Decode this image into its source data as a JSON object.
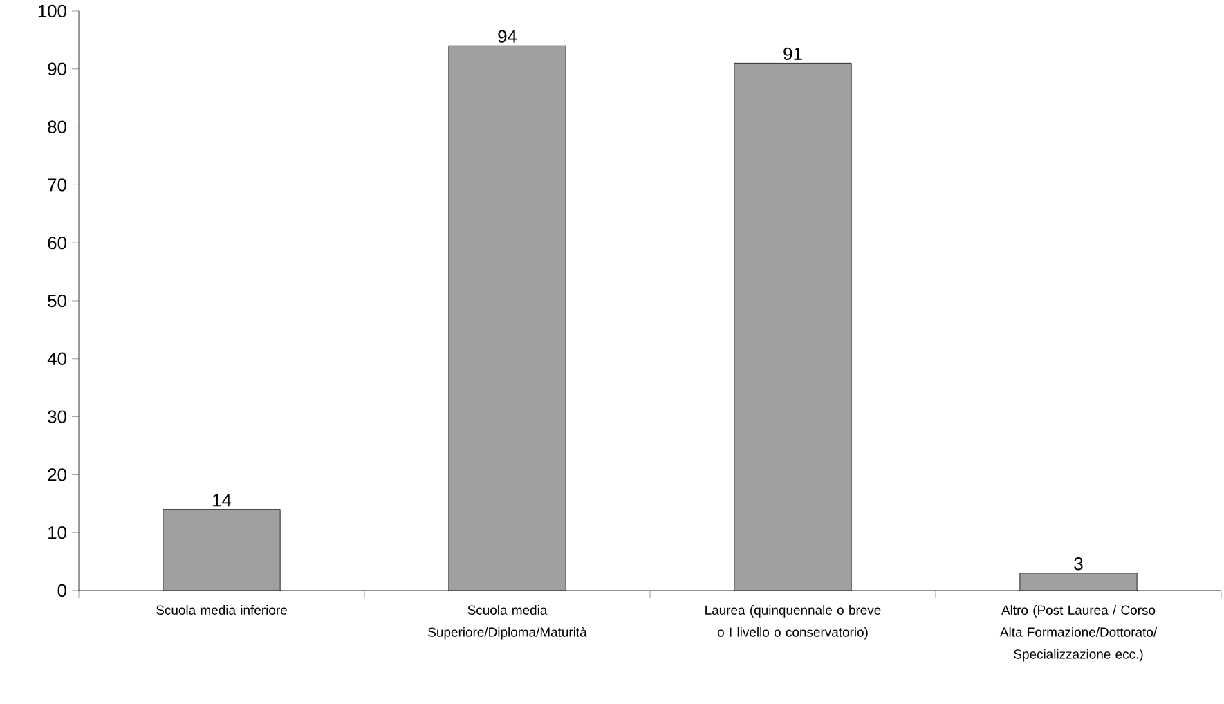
{
  "chart_data": {
    "type": "bar",
    "categories": [
      "Scuola media inferiore",
      "Scuola media Superiore/Diploma/Maturità",
      "Laurea (quinquennale o breve o I livello o conservatorio)",
      "Altro (Post Laurea / Corso Alta Formazione/Dottorato/ Specializzazione ecc.)"
    ],
    "values": [
      14,
      94,
      91,
      3
    ],
    "color": "#a0a0a0",
    "ylim": [
      0,
      100
    ],
    "yticks": [
      0,
      10,
      20,
      30,
      40,
      50,
      60,
      70,
      80,
      90,
      100
    ],
    "data_labels": true,
    "grid": false
  }
}
